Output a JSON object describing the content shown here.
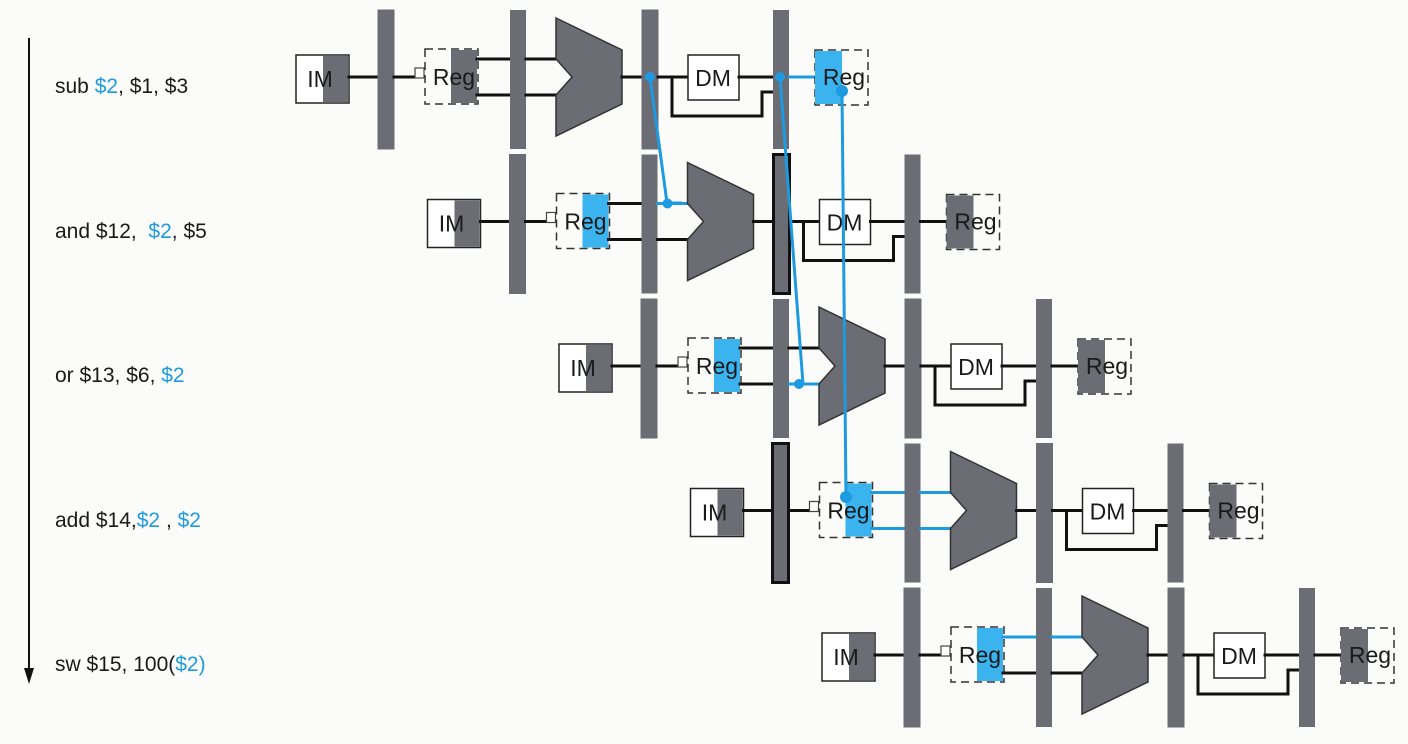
{
  "stage_labels": {
    "im": "IM",
    "reg": "Reg",
    "dm": "DM"
  },
  "colors": {
    "background": "#fbfcf9",
    "stage_gray": "#6c6c74",
    "forward_blue": "#1e9be0",
    "highlight_blue": "#3bb3ef",
    "wire": "#111111",
    "text": "#1a1a1a"
  },
  "instructions": [
    {
      "parts": [
        {
          "text": "sub "
        },
        {
          "text": "$2",
          "hl": true
        },
        {
          "text": ", $1, $3"
        }
      ]
    },
    {
      "parts": [
        {
          "text": "and $12,  "
        },
        {
          "text": "$2",
          "hl": true
        },
        {
          "text": ", $5"
        }
      ]
    },
    {
      "parts": [
        {
          "text": "or $13, $6, "
        },
        {
          "text": "$2",
          "hl": true
        }
      ]
    },
    {
      "parts": [
        {
          "text": "add $14,"
        },
        {
          "text": "$2",
          "hl": true
        },
        {
          "text": " , "
        },
        {
          "text": "$2",
          "hl": true
        }
      ]
    },
    {
      "parts": [
        {
          "text": "sw $15, 100("
        },
        {
          "text": "$2",
          "hl": true
        },
        {
          "text": ")",
          "hl": true
        }
      ]
    }
  ],
  "rows": [
    {
      "write_reg": "right",
      "read_hl": "none",
      "src_a": "none",
      "src_b": "none",
      "pr1_bold": false,
      "alu_dot_a": false,
      "alu_dot_b": false
    },
    {
      "write_reg": "none",
      "read_hl": "left",
      "src_a": "fwd",
      "src_b": "none",
      "pr1_bold": false,
      "alu_dot_a": true,
      "alu_dot_b": false,
      "pr3_bold": true
    },
    {
      "write_reg": "none",
      "read_hl": "left",
      "src_a": "none",
      "src_b": "fwd",
      "pr1_bold": false,
      "alu_dot_a": false,
      "alu_dot_b": true
    },
    {
      "write_reg": "none",
      "read_hl": "left",
      "src_a": "hl",
      "src_b": "hl",
      "pr1_bold": true,
      "alu_dot_a": false,
      "alu_dot_b": false
    },
    {
      "write_reg": "none",
      "read_hl": "left",
      "src_a": "hl",
      "src_b": "none",
      "pr1_bold": false,
      "alu_dot_a": false,
      "alu_dot_b": false
    }
  ]
}
